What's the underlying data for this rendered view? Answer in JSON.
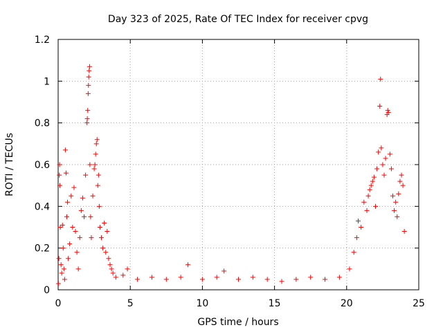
{
  "chart_data": {
    "type": "scatter",
    "title": "Day 323 of 2025, Rate Of TEC Index for receiver cpvg",
    "xlabel": "GPS time / hours",
    "ylabel": "ROTI / TECUs",
    "xlim": [
      0,
      25
    ],
    "ylim": [
      0,
      1.2
    ],
    "xticks": [
      0,
      5,
      10,
      15,
      20,
      25
    ],
    "xtick_labels": [
      "0",
      "5",
      "10",
      "15",
      "20",
      "25"
    ],
    "yticks": [
      0,
      0.2,
      0.4,
      0.6,
      0.8,
      1.0,
      1.2
    ],
    "ytick_labels": [
      "0",
      "0.2",
      "0.4",
      "0.6",
      "0.8",
      "1",
      "1.2"
    ],
    "grid": true,
    "marker": "plus",
    "color": "#ff0000",
    "series": [
      {
        "name": "ROTI",
        "points": [
          [
            0.02,
            0.03
          ],
          [
            0.05,
            0.15
          ],
          [
            0.08,
            0.55
          ],
          [
            0.1,
            0.6
          ],
          [
            0.12,
            0.5
          ],
          [
            0.15,
            0.3
          ],
          [
            0.2,
            0.12
          ],
          [
            0.25,
            0.08
          ],
          [
            0.3,
            0.31
          ],
          [
            0.35,
            0.2
          ],
          [
            0.4,
            0.1
          ],
          [
            0.45,
            0.05
          ],
          [
            0.5,
            0.67
          ],
          [
            0.55,
            0.56
          ],
          [
            0.6,
            0.35
          ],
          [
            0.65,
            0.42
          ],
          [
            0.7,
            0.15
          ],
          [
            0.8,
            0.22
          ],
          [
            0.9,
            0.45
          ],
          [
            1.0,
            0.3
          ],
          [
            1.1,
            0.49
          ],
          [
            1.2,
            0.28
          ],
          [
            1.3,
            0.18
          ],
          [
            1.4,
            0.1
          ],
          [
            1.5,
            0.25
          ],
          [
            1.6,
            0.38
          ],
          [
            1.7,
            0.44
          ],
          [
            1.8,
            0.35
          ],
          [
            1.9,
            0.55
          ],
          [
            2.0,
            0.8
          ],
          [
            2.02,
            0.82
          ],
          [
            2.05,
            0.86
          ],
          [
            2.08,
            0.94
          ],
          [
            2.1,
            0.98
          ],
          [
            2.12,
            1.02
          ],
          [
            2.15,
            1.05
          ],
          [
            2.18,
            1.07
          ],
          [
            2.2,
            0.6
          ],
          [
            2.25,
            0.35
          ],
          [
            2.3,
            0.25
          ],
          [
            2.4,
            0.45
          ],
          [
            2.5,
            0.58
          ],
          [
            2.55,
            0.6
          ],
          [
            2.6,
            0.65
          ],
          [
            2.65,
            0.7
          ],
          [
            2.7,
            0.72
          ],
          [
            2.75,
            0.5
          ],
          [
            2.8,
            0.55
          ],
          [
            2.85,
            0.4
          ],
          [
            2.9,
            0.3
          ],
          [
            3.0,
            0.25
          ],
          [
            3.1,
            0.2
          ],
          [
            3.2,
            0.32
          ],
          [
            3.3,
            0.18
          ],
          [
            3.4,
            0.28
          ],
          [
            3.5,
            0.15
          ],
          [
            3.6,
            0.12
          ],
          [
            3.7,
            0.1
          ],
          [
            3.8,
            0.08
          ],
          [
            4.0,
            0.06
          ],
          [
            4.5,
            0.07
          ],
          [
            4.8,
            0.1
          ],
          [
            5.5,
            0.05
          ],
          [
            6.5,
            0.06
          ],
          [
            7.5,
            0.05
          ],
          [
            8.5,
            0.06
          ],
          [
            9.0,
            0.12
          ],
          [
            10.0,
            0.05
          ],
          [
            11.0,
            0.06
          ],
          [
            11.5,
            0.09
          ],
          [
            12.5,
            0.05
          ],
          [
            13.5,
            0.06
          ],
          [
            14.5,
            0.05
          ],
          [
            15.5,
            0.04
          ],
          [
            16.5,
            0.05
          ],
          [
            17.5,
            0.06
          ],
          [
            18.5,
            0.05
          ],
          [
            19.5,
            0.06
          ],
          [
            20.2,
            0.1
          ],
          [
            20.5,
            0.18
          ],
          [
            20.7,
            0.25
          ],
          [
            20.8,
            0.33
          ],
          [
            21.0,
            0.3
          ],
          [
            21.2,
            0.42
          ],
          [
            21.4,
            0.38
          ],
          [
            21.5,
            0.45
          ],
          [
            21.6,
            0.48
          ],
          [
            21.7,
            0.5
          ],
          [
            21.8,
            0.52
          ],
          [
            21.9,
            0.54
          ],
          [
            22.0,
            0.4
          ],
          [
            22.1,
            0.58
          ],
          [
            22.2,
            0.66
          ],
          [
            22.3,
            0.88
          ],
          [
            22.35,
            1.01
          ],
          [
            22.4,
            0.68
          ],
          [
            22.5,
            0.6
          ],
          [
            22.6,
            0.55
          ],
          [
            22.7,
            0.63
          ],
          [
            22.8,
            0.84
          ],
          [
            22.85,
            0.86
          ],
          [
            22.9,
            0.85
          ],
          [
            23.0,
            0.65
          ],
          [
            23.1,
            0.58
          ],
          [
            23.2,
            0.45
          ],
          [
            23.3,
            0.38
          ],
          [
            23.4,
            0.42
          ],
          [
            23.5,
            0.35
          ],
          [
            23.6,
            0.46
          ],
          [
            23.7,
            0.52
          ],
          [
            23.8,
            0.55
          ],
          [
            23.9,
            0.5
          ],
          [
            24.0,
            0.28
          ]
        ]
      }
    ]
  }
}
